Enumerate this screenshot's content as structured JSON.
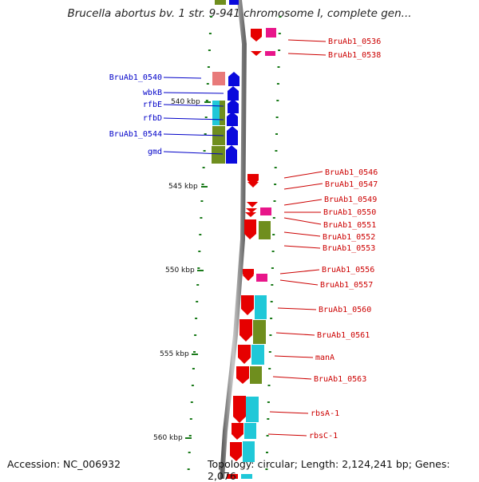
{
  "title": "Brucella abortus bv. 1 str. 9-941 chromosome I, complete gen...",
  "footer": {
    "accession": "Accession: NC_006932",
    "summary": "Topology: circular; Length: 2,124,241 bp; Genes: 2,076"
  },
  "colors": {
    "forward_strand": "#0a0adc",
    "reverse_strand": "#e60000",
    "pink_feature": "#e8168a",
    "light_red_feature": "#e87a7a",
    "cyan_feature": "#20c8d8",
    "olive_feature": "#6f8e1e",
    "left_label": "#0000c8",
    "right_label": "#cc0000",
    "tick": "#1a7a1a",
    "backbone": "#8f8f8f"
  },
  "scale_ticks": [
    "540 kbp",
    "545 kbp",
    "550 kbp",
    "555 kbp",
    "560 kbp"
  ],
  "left_labels": [
    "BruAb1_0540",
    "wbkB",
    "rfbE",
    "rfbD",
    "BruAb1_0544",
    "gmd"
  ],
  "right_labels": [
    "BruAb1_0536",
    "BruAb1_0538",
    "BruAb1_0546",
    "BruAb1_0547",
    "BruAb1_0549",
    "BruAb1_0550",
    "BruAb1_0551",
    "BruAb1_0552",
    "BruAb1_0553",
    "BruAb1_0556",
    "BruAb1_0557",
    "BruAb1_0560",
    "BruAb1_0561",
    "manA",
    "BruAb1_0563",
    "rbsA-1",
    "rbsC-1"
  ]
}
